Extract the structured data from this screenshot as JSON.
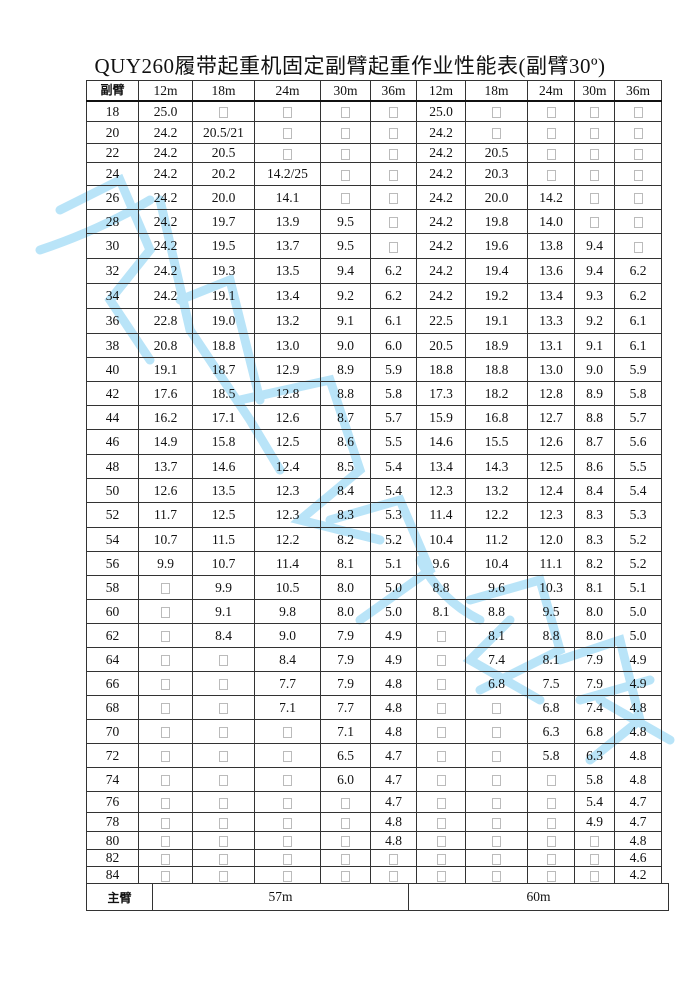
{
  "title": "QUY260履带起重机固定副臂起重作业性能表(副臂30º)",
  "header": {
    "corner_label": "副臂",
    "columns": [
      "12m",
      "18m",
      "24m",
      "30m",
      "36m",
      "12m",
      "18m",
      "24m",
      "30m",
      "36m"
    ]
  },
  "rows": [
    {
      "radius": "18",
      "values": [
        "25.0",
        "",
        "",
        "",
        "",
        "25.0",
        "",
        "",
        "",
        ""
      ]
    },
    {
      "radius": "20",
      "values": [
        "24.2",
        "20.5/21",
        "",
        "",
        "",
        "24.2",
        "",
        "",
        "",
        ""
      ]
    },
    {
      "radius": "22",
      "values": [
        "24.2",
        "20.5",
        "",
        "",
        "",
        "24.2",
        "20.5",
        "",
        "",
        ""
      ]
    },
    {
      "radius": "24",
      "values": [
        "24.2",
        "20.2",
        "14.2/25",
        "",
        "",
        "24.2",
        "20.3",
        "",
        "",
        ""
      ]
    },
    {
      "radius": "26",
      "values": [
        "24.2",
        "20.0",
        "14.1",
        "",
        "",
        "24.2",
        "20.0",
        "14.2",
        "",
        ""
      ]
    },
    {
      "radius": "28",
      "values": [
        "24.2",
        "19.7",
        "13.9",
        "9.5",
        "",
        "24.2",
        "19.8",
        "14.0",
        "",
        ""
      ]
    },
    {
      "radius": "30",
      "values": [
        "24.2",
        "19.5",
        "13.7",
        "9.5",
        "",
        "24.2",
        "19.6",
        "13.8",
        "9.4",
        ""
      ]
    },
    {
      "radius": "32",
      "values": [
        "24.2",
        "19.3",
        "13.5",
        "9.4",
        "6.2",
        "24.2",
        "19.4",
        "13.6",
        "9.4",
        "6.2"
      ]
    },
    {
      "radius": "34",
      "values": [
        "24.2",
        "19.1",
        "13.4",
        "9.2",
        "6.2",
        "24.2",
        "19.2",
        "13.4",
        "9.3",
        "6.2"
      ]
    },
    {
      "radius": "36",
      "values": [
        "22.8",
        "19.0",
        "13.2",
        "9.1",
        "6.1",
        "22.5",
        "19.1",
        "13.3",
        "9.2",
        "6.1"
      ]
    },
    {
      "radius": "38",
      "values": [
        "20.8",
        "18.8",
        "13.0",
        "9.0",
        "6.0",
        "20.5",
        "18.9",
        "13.1",
        "9.1",
        "6.1"
      ]
    },
    {
      "radius": "40",
      "values": [
        "19.1",
        "18.7",
        "12.9",
        "8.9",
        "5.9",
        "18.8",
        "18.8",
        "13.0",
        "9.0",
        "5.9"
      ]
    },
    {
      "radius": "42",
      "values": [
        "17.6",
        "18.5",
        "12.8",
        "8.8",
        "5.8",
        "17.3",
        "18.2",
        "12.8",
        "8.9",
        "5.8"
      ]
    },
    {
      "radius": "44",
      "values": [
        "16.2",
        "17.1",
        "12.6",
        "8.7",
        "5.7",
        "15.9",
        "16.8",
        "12.7",
        "8.8",
        "5.7"
      ]
    },
    {
      "radius": "46",
      "values": [
        "14.9",
        "15.8",
        "12.5",
        "8.6",
        "5.5",
        "14.6",
        "15.5",
        "12.6",
        "8.7",
        "5.6"
      ]
    },
    {
      "radius": "48",
      "values": [
        "13.7",
        "14.6",
        "12.4",
        "8.5",
        "5.4",
        "13.4",
        "14.3",
        "12.5",
        "8.6",
        "5.5"
      ]
    },
    {
      "radius": "50",
      "values": [
        "12.6",
        "13.5",
        "12.3",
        "8.4",
        "5.4",
        "12.3",
        "13.2",
        "12.4",
        "8.4",
        "5.4"
      ]
    },
    {
      "radius": "52",
      "values": [
        "11.7",
        "12.5",
        "12.3",
        "8.3",
        "5.3",
        "11.4",
        "12.2",
        "12.3",
        "8.3",
        "5.3"
      ]
    },
    {
      "radius": "54",
      "values": [
        "10.7",
        "11.5",
        "12.2",
        "8.2",
        "5.2",
        "10.4",
        "11.2",
        "12.0",
        "8.3",
        "5.2"
      ]
    },
    {
      "radius": "56",
      "values": [
        "9.9",
        "10.7",
        "11.4",
        "8.1",
        "5.1",
        "9.6",
        "10.4",
        "11.1",
        "8.2",
        "5.2"
      ]
    },
    {
      "radius": "58",
      "values": [
        "",
        "9.9",
        "10.5",
        "8.0",
        "5.0",
        "8.8",
        "9.6",
        "10.3",
        "8.1",
        "5.1"
      ]
    },
    {
      "radius": "60",
      "values": [
        "",
        "9.1",
        "9.8",
        "8.0",
        "5.0",
        "8.1",
        "8.8",
        "9.5",
        "8.0",
        "5.0"
      ]
    },
    {
      "radius": "62",
      "values": [
        "",
        "8.4",
        "9.0",
        "7.9",
        "4.9",
        "",
        "8.1",
        "8.8",
        "8.0",
        "5.0"
      ]
    },
    {
      "radius": "64",
      "values": [
        "",
        "",
        "8.4",
        "7.9",
        "4.9",
        "",
        "7.4",
        "8.1",
        "7.9",
        "4.9"
      ]
    },
    {
      "radius": "66",
      "values": [
        "",
        "",
        "7.7",
        "7.9",
        "4.8",
        "",
        "6.8",
        "7.5",
        "7.9",
        "4.9"
      ]
    },
    {
      "radius": "68",
      "values": [
        "",
        "",
        "7.1",
        "7.7",
        "4.8",
        "",
        "",
        "6.8",
        "7.4",
        "4.8"
      ]
    },
    {
      "radius": "70",
      "values": [
        "",
        "",
        "",
        "7.1",
        "4.8",
        "",
        "",
        "6.3",
        "6.8",
        "4.8"
      ]
    },
    {
      "radius": "72",
      "values": [
        "",
        "",
        "",
        "6.5",
        "4.7",
        "",
        "",
        "5.8",
        "6.3",
        "4.8"
      ]
    },
    {
      "radius": "74",
      "values": [
        "",
        "",
        "",
        "6.0",
        "4.7",
        "",
        "",
        "",
        "5.8",
        "4.8"
      ]
    },
    {
      "radius": "76",
      "values": [
        "",
        "",
        "",
        "",
        "4.7",
        "",
        "",
        "",
        "5.4",
        "4.7"
      ]
    },
    {
      "radius": "78",
      "values": [
        "",
        "",
        "",
        "",
        "4.8",
        "",
        "",
        "",
        "4.9",
        "4.7"
      ]
    },
    {
      "radius": "80",
      "values": [
        "",
        "",
        "",
        "",
        "4.8",
        "",
        "",
        "",
        "",
        "4.8"
      ]
    },
    {
      "radius": "82",
      "values": [
        "",
        "",
        "",
        "",
        "",
        "",
        "",
        "",
        "",
        "4.6"
      ]
    },
    {
      "radius": "84",
      "values": [
        "",
        "",
        "",
        "",
        "",
        "",
        "",
        "",
        "",
        "4.2"
      ]
    }
  ],
  "footer": {
    "label": "主臂",
    "groups": [
      "57m",
      "60m"
    ]
  },
  "colors": {
    "watermark": "#8fd3f4",
    "grid": "#333333"
  }
}
